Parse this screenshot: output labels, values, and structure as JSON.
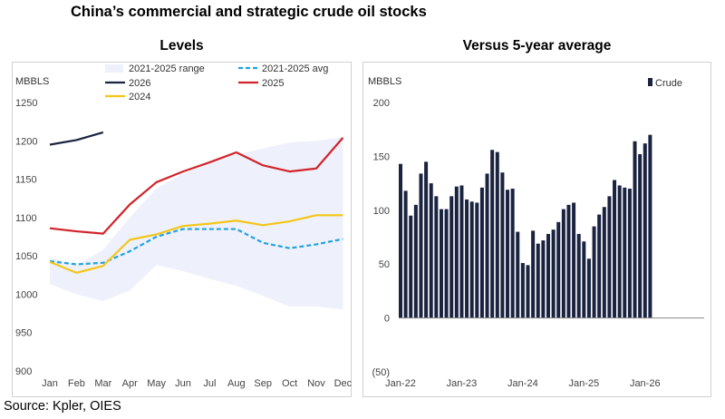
{
  "title": "China’s commercial and strategic crude oil stocks",
  "source": "Source: Kpler, OIES",
  "chart_data": [
    {
      "type": "line",
      "title": "Levels",
      "ylabel": "MBBLS",
      "xlabel": "",
      "categories": [
        "Jan",
        "Feb",
        "Mar",
        "Apr",
        "May",
        "Jun",
        "Jul",
        "Aug",
        "Sep",
        "Oct",
        "Nov",
        "Dec"
      ],
      "ylim": [
        900,
        1250
      ],
      "yticks": [
        900,
        950,
        1000,
        1050,
        1100,
        1150,
        1200,
        1250
      ],
      "grid": false,
      "legend_position": "top",
      "range": {
        "name": "2021-2025 range",
        "color": "#eef1fb",
        "low": [
          1013,
          1000,
          991,
          1005,
          1038,
          1030,
          1020,
          1011,
          998,
          984,
          984,
          980
        ],
        "high": [
          1048,
          1038,
          1058,
          1100,
          1138,
          1157,
          1172,
          1182,
          1190,
          1198,
          1200,
          1205
        ]
      },
      "series": [
        {
          "name": "2021-2025 avg",
          "color": "#1fa3df",
          "dashed": true,
          "values": [
            1043,
            1039,
            1041,
            1056,
            1075,
            1085,
            1085,
            1085,
            1067,
            1060,
            1065,
            1072
          ]
        },
        {
          "name": "2025",
          "color": "#d2232a",
          "dashed": false,
          "values": [
            1086,
            1082,
            1079,
            1117,
            1146,
            1160,
            1172,
            1185,
            1168,
            1160,
            1164,
            1204
          ]
        },
        {
          "name": "2026",
          "color": "#1a2340",
          "dashed": false,
          "values": [
            1195,
            1201,
            1211,
            null,
            null,
            null,
            null,
            null,
            null,
            null,
            null,
            null
          ]
        },
        {
          "name": "2024",
          "color": "#f5c518",
          "dashed": false,
          "values": [
            1042,
            1028,
            1037,
            1071,
            1078,
            1089,
            1092,
            1096,
            1090,
            1095,
            1103,
            1103
          ]
        }
      ]
    },
    {
      "type": "bar",
      "title": "Versus 5-year average",
      "ylabel": "MBBLS",
      "xlabel": "",
      "ylim": [
        -50,
        200
      ],
      "yticks": [
        -50,
        0,
        50,
        100,
        150,
        200
      ],
      "ytick_labels": [
        "(50)",
        "0",
        "50",
        "100",
        "150",
        "200"
      ],
      "xtick_labels": [
        "Jan-22",
        "Jan-23",
        "Jan-24",
        "Jan-25",
        "Jan-26"
      ],
      "grid": false,
      "legend_position": "top-right",
      "series": [
        {
          "name": "Crude",
          "color": "#1a2340",
          "values": [
            143,
            118,
            95,
            105,
            134,
            145,
            125,
            113,
            101,
            101,
            113,
            122,
            123,
            110,
            108,
            107,
            121,
            134,
            156,
            154,
            135,
            119,
            120,
            80,
            51,
            49,
            81,
            69,
            72,
            78,
            82,
            89,
            101,
            105,
            107,
            78,
            71,
            55,
            85,
            96,
            103,
            113,
            128,
            123,
            121,
            120,
            164,
            152,
            162,
            170
          ]
        }
      ]
    }
  ]
}
